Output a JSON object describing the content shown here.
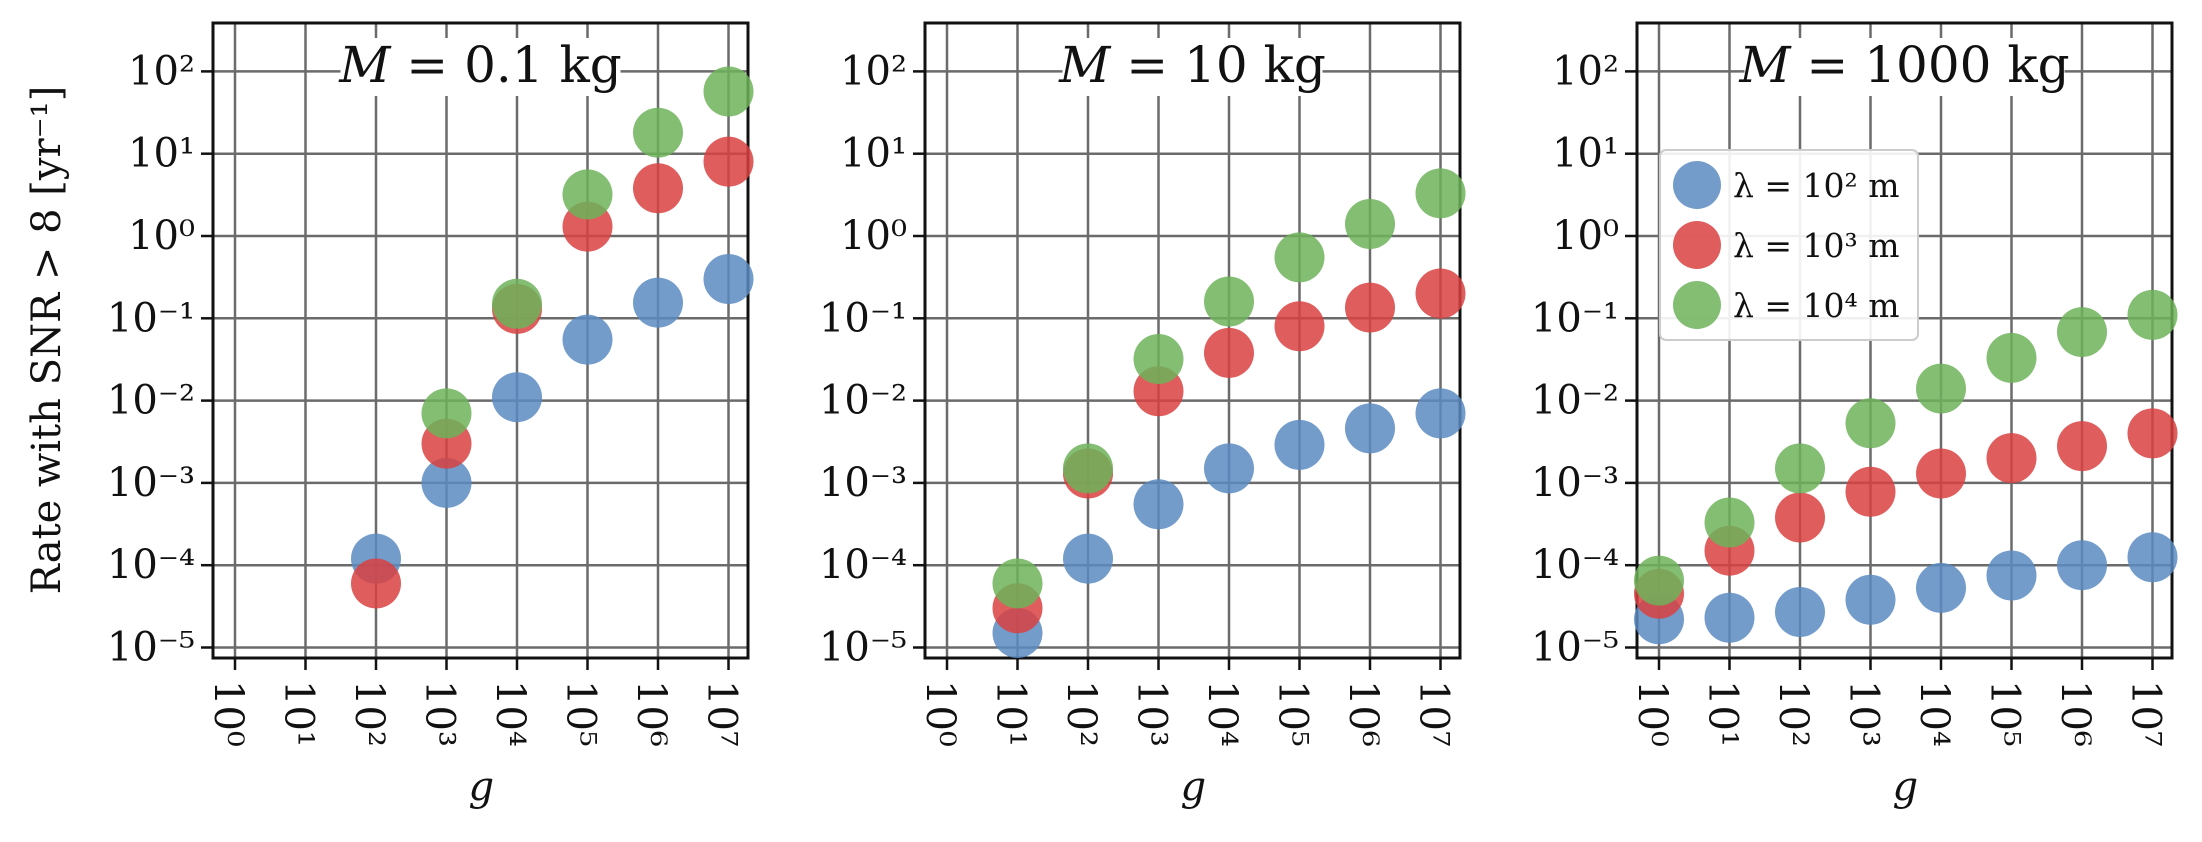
{
  "chart_data": [
    {
      "type": "scatter",
      "title": {
        "symbol": "M",
        "rest": " = 0.1 kg"
      },
      "xlabel": "g",
      "ylabel": "Rate with SNR > 8 [yr⁻¹]",
      "xscale": "log",
      "yscale": "log",
      "x_ticks": [
        "10⁰",
        "10¹",
        "10²",
        "10³",
        "10⁴",
        "10⁵",
        "10⁶",
        "10⁷"
      ],
      "y_ticks": [
        "10⁻⁵",
        "10⁻⁴",
        "10⁻³",
        "10⁻²",
        "10⁻¹",
        "10⁰",
        "10¹",
        "10²"
      ],
      "xlim": [
        0.5,
        20000000
      ],
      "ylim": [
        7e-06,
        400
      ],
      "grid": true,
      "series": [
        {
          "name": "λ = 10² m",
          "color": "#5b8bc2",
          "points": [
            [
              100,
              0.00012
            ],
            [
              1000,
              0.001
            ],
            [
              10000,
              0.011
            ],
            [
              100000,
              0.055
            ],
            [
              1000000,
              0.155
            ],
            [
              10000000,
              0.3
            ]
          ]
        },
        {
          "name": "λ = 10³ m",
          "color": "#d94141",
          "points": [
            [
              100,
              6e-05
            ],
            [
              1000,
              0.003
            ],
            [
              10000,
              0.13
            ],
            [
              100000,
              1.3
            ],
            [
              1000000,
              3.8
            ],
            [
              10000000,
              8
            ]
          ]
        },
        {
          "name": "λ = 10⁴ m",
          "color": "#6db35b",
          "points": [
            [
              1000,
              0.007
            ],
            [
              10000,
              0.15
            ],
            [
              100000,
              3.2
            ],
            [
              1000000,
              18
            ],
            [
              10000000,
              57
            ]
          ]
        }
      ]
    },
    {
      "type": "scatter",
      "title": {
        "symbol": "M",
        "rest": " = 10 kg"
      },
      "xlabel": "g",
      "xscale": "log",
      "yscale": "log",
      "x_ticks": [
        "10⁰",
        "10¹",
        "10²",
        "10³",
        "10⁴",
        "10⁵",
        "10⁶",
        "10⁷"
      ],
      "y_ticks": [
        "10⁻⁵",
        "10⁻⁴",
        "10⁻³",
        "10⁻²",
        "10⁻¹",
        "10⁰",
        "10¹",
        "10²"
      ],
      "xlim": [
        0.5,
        20000000
      ],
      "ylim": [
        7e-06,
        400
      ],
      "grid": true,
      "series": [
        {
          "name": "λ = 10² m",
          "color": "#5b8bc2",
          "points": [
            [
              10,
              1.5e-05
            ],
            [
              100,
              0.00012
            ],
            [
              1000,
              0.00055
            ],
            [
              10000,
              0.0015
            ],
            [
              100000,
              0.0029
            ],
            [
              1000000,
              0.0046
            ],
            [
              10000000,
              0.007
            ]
          ]
        },
        {
          "name": "λ = 10³ m",
          "color": "#d94141",
          "points": [
            [
              10,
              3e-05
            ],
            [
              100,
              0.0013
            ],
            [
              1000,
              0.013
            ],
            [
              10000,
              0.038
            ],
            [
              100000,
              0.08
            ],
            [
              1000000,
              0.135
            ],
            [
              10000000,
              0.2
            ]
          ]
        },
        {
          "name": "λ = 10⁴ m",
          "color": "#6db35b",
          "points": [
            [
              10,
              6e-05
            ],
            [
              100,
              0.0015
            ],
            [
              1000,
              0.032
            ],
            [
              10000,
              0.16
            ],
            [
              100000,
              0.55
            ],
            [
              1000000,
              1.4
            ],
            [
              10000000,
              3.3
            ]
          ]
        }
      ]
    },
    {
      "type": "scatter",
      "title": {
        "symbol": "M",
        "rest": " = 1000 kg"
      },
      "xlabel": "g",
      "xscale": "log",
      "yscale": "log",
      "x_ticks": [
        "10⁰",
        "10¹",
        "10²",
        "10³",
        "10⁴",
        "10⁵",
        "10⁶",
        "10⁷"
      ],
      "y_ticks": [
        "10⁻⁵",
        "10⁻⁴",
        "10⁻³",
        "10⁻²",
        "10⁻¹",
        "10⁰",
        "10¹",
        "10²"
      ],
      "xlim": [
        0.5,
        20000000
      ],
      "ylim": [
        7e-06,
        400
      ],
      "grid": true,
      "legend": "upper-left",
      "series": [
        {
          "name": "λ = 10² m",
          "color": "#5b8bc2",
          "points": [
            [
              1,
              2.2e-05
            ],
            [
              10,
              2.3e-05
            ],
            [
              100,
              2.7e-05
            ],
            [
              1000,
              3.8e-05
            ],
            [
              10000,
              5.3e-05
            ],
            [
              100000,
              7.5e-05
            ],
            [
              1000000,
              0.0001
            ],
            [
              10000000,
              0.000125
            ]
          ]
        },
        {
          "name": "λ = 10³ m",
          "color": "#d94141",
          "points": [
            [
              1,
              4.5e-05
            ],
            [
              10,
              0.00015
            ],
            [
              100,
              0.00038
            ],
            [
              1000,
              0.00078
            ],
            [
              10000,
              0.0013
            ],
            [
              100000,
              0.002
            ],
            [
              1000000,
              0.0028
            ],
            [
              10000000,
              0.004
            ]
          ]
        },
        {
          "name": "λ = 10⁴ m",
          "color": "#6db35b",
          "points": [
            [
              1,
              6.5e-05
            ],
            [
              10,
              0.00033
            ],
            [
              100,
              0.0015
            ],
            [
              1000,
              0.0053
            ],
            [
              10000,
              0.014
            ],
            [
              100000,
              0.033
            ],
            [
              1000000,
              0.068
            ],
            [
              10000000,
              0.11
            ]
          ]
        }
      ]
    }
  ]
}
